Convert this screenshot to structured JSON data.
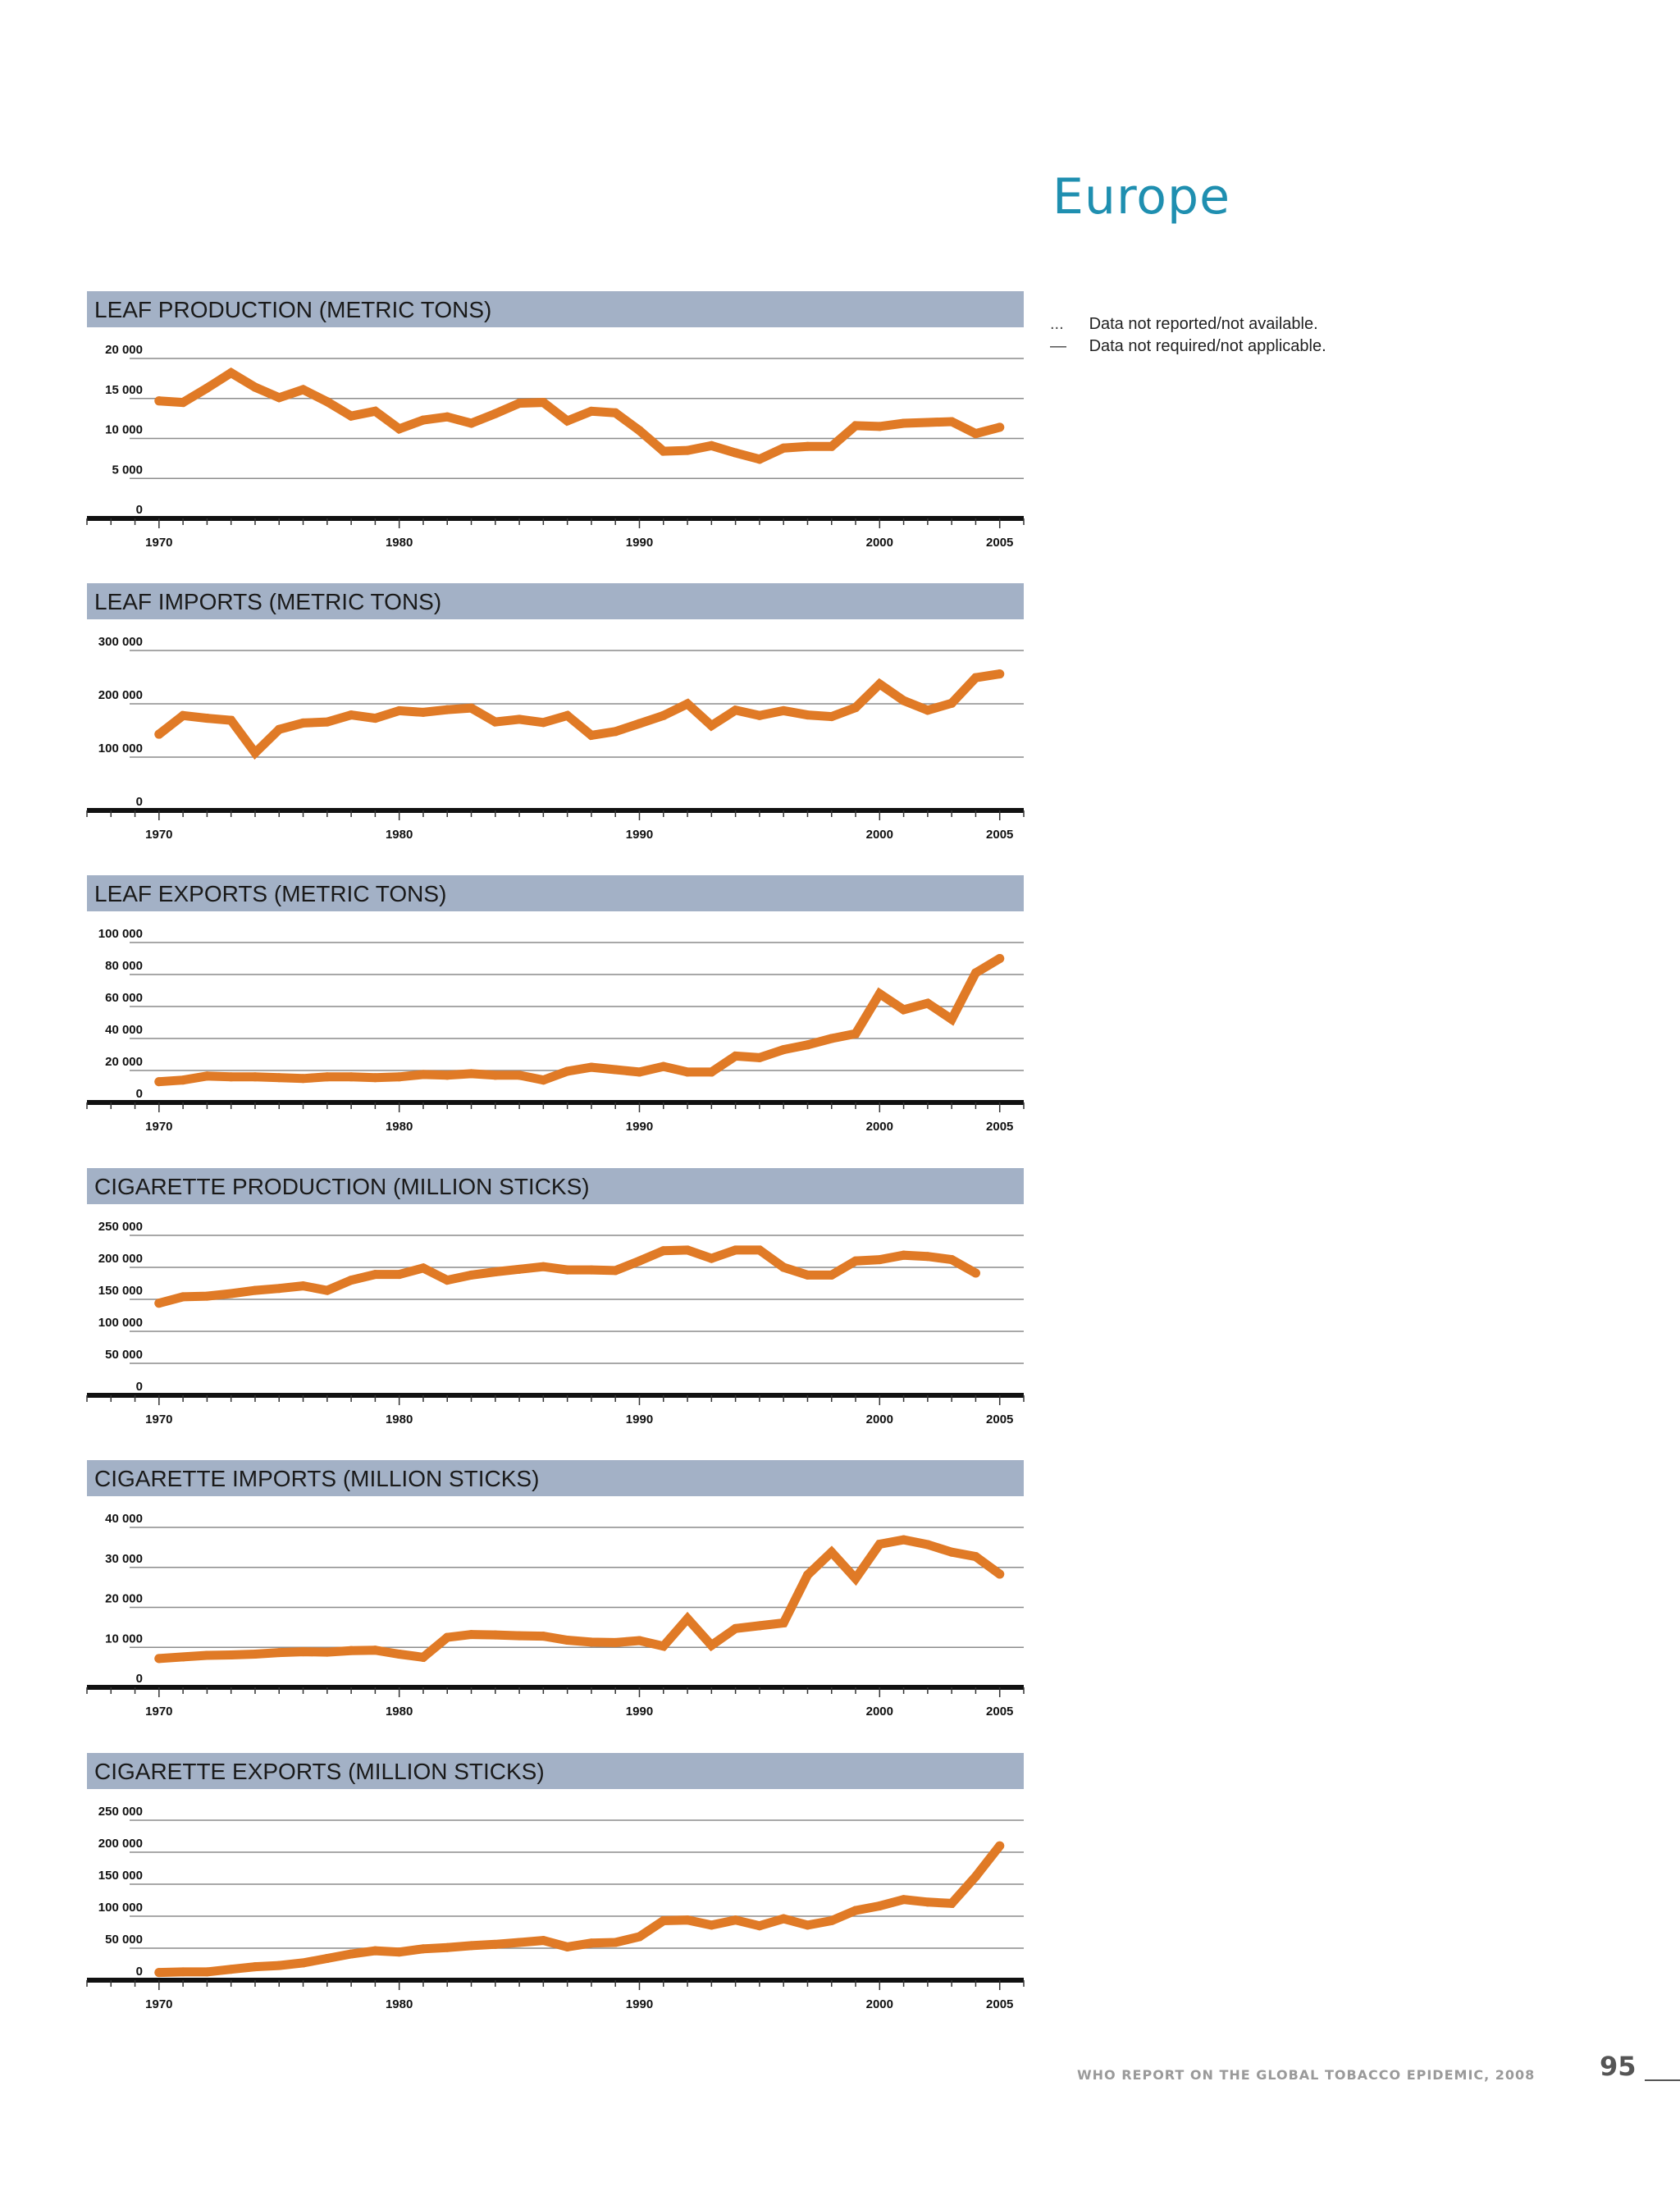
{
  "page": {
    "region_title": "Europe",
    "legend": [
      {
        "symbol": "...",
        "text": "Data not reported/not available."
      },
      {
        "symbol": "—",
        "text": "Data not required/not applicable."
      }
    ],
    "footer": "WHO REPORT ON THE GLOBAL TOBACCO EPIDEMIC, 2008",
    "page_number": "95"
  },
  "colors": {
    "line": "#e07a26",
    "header_band": "#a3b1c6",
    "header_text": "#1a1a1a",
    "grid": "#8c8c8c",
    "axis": "#111111",
    "title": "#1f8fb0"
  },
  "chart_data": [
    {
      "type": "line",
      "title": "LEAF PRODUCTION (METRIC TONS)",
      "ylim": [
        0,
        20000
      ],
      "yticks": [
        0,
        5000,
        10000,
        15000,
        20000
      ],
      "ytick_labels": [
        "0",
        "5 000",
        "10 000",
        "15 000",
        "20 000"
      ],
      "xlim": [
        1967,
        2006
      ],
      "xticks": [
        1970,
        1980,
        1990,
        2000,
        2005
      ],
      "xtick_labels": [
        "1970",
        "1980",
        "1990",
        "2000",
        "2005"
      ],
      "x": [
        1970,
        1971,
        1972,
        1973,
        1974,
        1975,
        1976,
        1977,
        1978,
        1979,
        1980,
        1981,
        1982,
        1983,
        1984,
        1985,
        1986,
        1987,
        1988,
        1989,
        1990,
        1991,
        1992,
        1993,
        1994,
        1995,
        1996,
        1997,
        1998,
        1999,
        2000,
        2001,
        2002,
        2003,
        2004,
        2005
      ],
      "values": [
        14700,
        14500,
        16300,
        18200,
        16400,
        15100,
        16100,
        14600,
        12800,
        13400,
        11200,
        12300,
        12700,
        11900,
        13100,
        14400,
        14500,
        12200,
        13400,
        13200,
        11000,
        8400,
        8500,
        9100,
        8200,
        7400,
        8800,
        9000,
        9000,
        11600,
        11500,
        11900,
        12000,
        12100,
        10600,
        11400
      ],
      "grid": true
    },
    {
      "type": "line",
      "title": "LEAF IMPORTS (METRIC TONS)",
      "ylim": [
        0,
        300000
      ],
      "yticks": [
        0,
        100000,
        200000,
        300000
      ],
      "ytick_labels": [
        "0",
        "100 000",
        "200 000",
        "300 000"
      ],
      "xlim": [
        1967,
        2006
      ],
      "xticks": [
        1970,
        1980,
        1990,
        2000,
        2005
      ],
      "xtick_labels": [
        "1970",
        "1980",
        "1990",
        "2000",
        "2005"
      ],
      "x": [
        1970,
        1971,
        1972,
        1973,
        1974,
        1975,
        1976,
        1977,
        1978,
        1979,
        1980,
        1981,
        1982,
        1983,
        1984,
        1985,
        1986,
        1987,
        1988,
        1989,
        1990,
        1991,
        1992,
        1993,
        1994,
        1995,
        1996,
        1997,
        1998,
        1999,
        2000,
        2001,
        2002,
        2003,
        2004,
        2005
      ],
      "values": [
        143000,
        178000,
        173000,
        169000,
        108000,
        152000,
        164000,
        166000,
        179000,
        173000,
        187000,
        184000,
        189000,
        192000,
        166000,
        171000,
        165000,
        178000,
        141000,
        148000,
        163000,
        178000,
        200000,
        159000,
        188000,
        178000,
        187000,
        179000,
        176000,
        193000,
        237000,
        206000,
        188000,
        201000,
        249000,
        256000
      ],
      "grid": true
    },
    {
      "type": "line",
      "title": "LEAF EXPORTS (METRIC TONS)",
      "ylim": [
        0,
        100000
      ],
      "yticks": [
        0,
        20000,
        40000,
        60000,
        80000,
        100000
      ],
      "ytick_labels": [
        "0",
        "20 000",
        "40 000",
        "60 000",
        "80 000",
        "100 000"
      ],
      "xlim": [
        1967,
        2006
      ],
      "xticks": [
        1970,
        1980,
        1990,
        2000,
        2005
      ],
      "xtick_labels": [
        "1970",
        "1980",
        "1990",
        "2000",
        "2005"
      ],
      "x": [
        1970,
        1971,
        1972,
        1973,
        1974,
        1975,
        1976,
        1977,
        1978,
        1979,
        1980,
        1981,
        1982,
        1983,
        1984,
        1985,
        1986,
        1987,
        1988,
        1989,
        1990,
        1991,
        1992,
        1993,
        1994,
        1995,
        1996,
        1997,
        1998,
        1999,
        2000,
        2001,
        2002,
        2003,
        2004,
        2005
      ],
      "values": [
        13000,
        14000,
        16500,
        16000,
        16000,
        15500,
        15000,
        16000,
        16000,
        15500,
        16000,
        17500,
        17000,
        18000,
        17000,
        17000,
        14000,
        19500,
        22000,
        20500,
        19000,
        22500,
        19000,
        19000,
        29000,
        28000,
        33000,
        36000,
        40000,
        43000,
        68000,
        58000,
        62000,
        52000,
        81000,
        90000
      ],
      "grid": true
    },
    {
      "type": "line",
      "title": "CIGARETTE PRODUCTION (MILLION STICKS)",
      "ylim": [
        0,
        250000
      ],
      "yticks": [
        0,
        50000,
        100000,
        150000,
        200000,
        250000
      ],
      "ytick_labels": [
        "0",
        "50 000",
        "100 000",
        "150 000",
        "200 000",
        "250 000"
      ],
      "xlim": [
        1967,
        2006
      ],
      "xticks": [
        1970,
        1980,
        1990,
        2000,
        2005
      ],
      "xtick_labels": [
        "1970",
        "1980",
        "1990",
        "2000",
        "2005"
      ],
      "x": [
        1970,
        1971,
        1972,
        1973,
        1974,
        1975,
        1976,
        1977,
        1978,
        1979,
        1980,
        1981,
        1982,
        1983,
        1984,
        1985,
        1986,
        1987,
        1988,
        1989,
        1990,
        1991,
        1992,
        1993,
        1994,
        1995,
        1996,
        1997,
        1998,
        1999,
        2000,
        2001,
        2002,
        2003,
        2004
      ],
      "values": [
        144000,
        154000,
        155000,
        159000,
        164000,
        167000,
        171000,
        164000,
        180000,
        189000,
        189000,
        199000,
        180000,
        188000,
        193000,
        197000,
        201000,
        196000,
        196000,
        195000,
        210000,
        226000,
        227000,
        214000,
        227000,
        227000,
        200000,
        188000,
        188000,
        210000,
        212000,
        219000,
        217000,
        212000,
        191000
      ],
      "grid": true
    },
    {
      "type": "line",
      "title": "CIGARETTE IMPORTS (MILLION STICKS)",
      "ylim": [
        0,
        40000
      ],
      "yticks": [
        0,
        10000,
        20000,
        30000,
        40000
      ],
      "ytick_labels": [
        "0",
        "10 000",
        "20 000",
        "30 000",
        "40 000"
      ],
      "xlim": [
        1967,
        2006
      ],
      "xticks": [
        1970,
        1980,
        1990,
        2000,
        2005
      ],
      "xtick_labels": [
        "1970",
        "1980",
        "1990",
        "2000",
        "2005"
      ],
      "x": [
        1970,
        1971,
        1972,
        1973,
        1974,
        1975,
        1976,
        1977,
        1978,
        1979,
        1980,
        1981,
        1982,
        1983,
        1984,
        1985,
        1986,
        1987,
        1988,
        1989,
        1990,
        1991,
        1992,
        1993,
        1994,
        1995,
        1996,
        1997,
        1998,
        1999,
        2000,
        2001,
        2002,
        2003,
        2004,
        2005
      ],
      "values": [
        7200,
        7600,
        8000,
        8100,
        8300,
        8700,
        8900,
        8800,
        9200,
        9300,
        8300,
        7500,
        12500,
        13200,
        13100,
        12900,
        12800,
        11800,
        11300,
        11200,
        11700,
        10300,
        17200,
        10500,
        14700,
        15400,
        16100,
        28100,
        33800,
        27200,
        35800,
        36900,
        35700,
        33800,
        32700,
        28300
      ],
      "grid": true
    },
    {
      "type": "line",
      "title": "CIGARETTE EXPORTS (MILLION STICKS)",
      "ylim": [
        0,
        250000
      ],
      "yticks": [
        0,
        50000,
        100000,
        150000,
        200000,
        250000
      ],
      "ytick_labels": [
        "0",
        "50 000",
        "100 000",
        "150 000",
        "200 000",
        "250 000"
      ],
      "xlim": [
        1967,
        2006
      ],
      "xticks": [
        1970,
        1980,
        1990,
        2000,
        2005
      ],
      "xtick_labels": [
        "1970",
        "1980",
        "1990",
        "2000",
        "2005"
      ],
      "x": [
        1970,
        1971,
        1972,
        1973,
        1974,
        1975,
        1976,
        1977,
        1978,
        1979,
        1980,
        1981,
        1982,
        1983,
        1984,
        1985,
        1986,
        1987,
        1988,
        1989,
        1990,
        1991,
        1992,
        1993,
        1994,
        1995,
        1996,
        1997,
        1998,
        1999,
        2000,
        2001,
        2002,
        2003,
        2004,
        2005
      ],
      "values": [
        12000,
        13000,
        13000,
        17000,
        21000,
        23000,
        27000,
        34000,
        41000,
        46000,
        44000,
        49000,
        51000,
        54000,
        56000,
        59000,
        62000,
        52000,
        58000,
        59000,
        68000,
        93000,
        94000,
        86000,
        94000,
        85000,
        96000,
        86000,
        93000,
        109000,
        116000,
        126000,
        122000,
        120000,
        162000,
        210000
      ],
      "grid": true
    }
  ]
}
